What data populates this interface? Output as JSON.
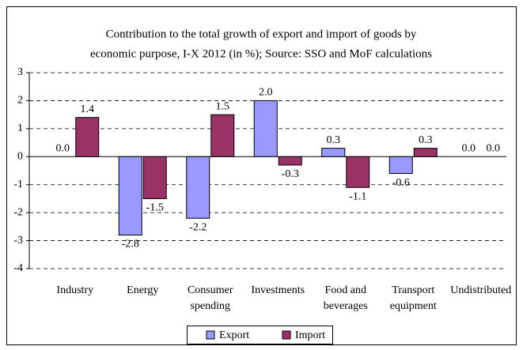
{
  "chart_data": {
    "type": "bar",
    "title": [
      "Contribution to the total growth of export and import of goods by",
      "economic purpose, I-X 2012 (in %); Source: SSO and MoF calculations"
    ],
    "categories": [
      "Industry",
      "Energy",
      "Consumer spending",
      "Investments",
      "Food and beverages",
      "Transport equipment",
      "Undistributed"
    ],
    "series": [
      {
        "name": "Export",
        "color": "#9999ff",
        "values": [
          0,
          -2.8,
          -2.2,
          2,
          0.3,
          -0.6,
          0
        ],
        "value_labels": [
          "0.0",
          "-2.8",
          "-2.2",
          "2.0",
          "0.3",
          "-0.6",
          "0.0"
        ]
      },
      {
        "name": "Import",
        "color": "#993366",
        "values": [
          1.4,
          -1.5,
          1.5,
          -0.3,
          -1.1,
          0.3,
          0
        ],
        "value_labels": [
          "1.4",
          "-1.5",
          "1.5",
          "-0.3",
          "-1.1",
          "0.3",
          "0.0"
        ]
      }
    ],
    "ylim": [
      -4,
      3
    ],
    "yticks": [
      -4,
      -3,
      -2,
      -1,
      0,
      1,
      2,
      3
    ],
    "grid": true,
    "legend": "bottom"
  }
}
